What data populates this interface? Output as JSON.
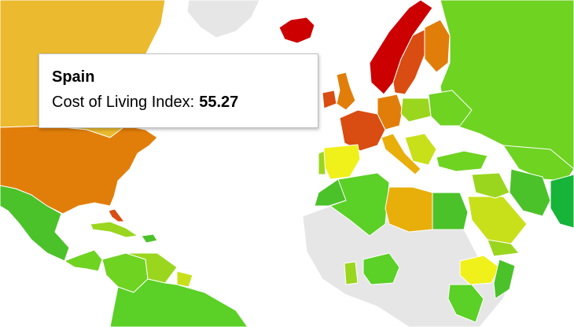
{
  "colors": {
    "ocean": "#ffffff",
    "no_data": "#e6e6e6",
    "border": "#ffffff",
    "dark_red": "#cc0000",
    "red_orange": "#d94c12",
    "orange": "#e17e0a",
    "amber": "#e8ae0a",
    "orange_yellow": "#efc21e",
    "yellow": "#f0f01a",
    "yellow_green": "#c8e019",
    "light_green": "#9bd61f",
    "green": "#6fd322",
    "mid_green": "#5bd026",
    "green_2": "#4cc22a",
    "dark_green": "#17b43a"
  },
  "tooltip": {
    "country": "Spain",
    "label": "Cost of Living Index:",
    "value": "55.27"
  }
}
